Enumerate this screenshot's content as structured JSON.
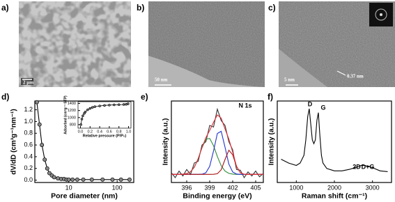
{
  "images": [
    {
      "label": "a)",
      "scale_bar": "2 μm"
    },
    {
      "label": "b)",
      "scale_bar": "50 nm"
    },
    {
      "label": "c)",
      "scale_bar": "5 nm",
      "annotation": "0.37 nm"
    }
  ],
  "chart_data": [
    {
      "type": "line",
      "label": "d)",
      "xlabel": "Pore diameter (nm)",
      "ylabel": "dV/dD (cm³g⁻¹nm⁻¹)",
      "xlog": true,
      "x": [
        2.2,
        2.5,
        2.8,
        3.2,
        3.6,
        4,
        4.5,
        5,
        6,
        7,
        8,
        9,
        10,
        12,
        15,
        20,
        30,
        50,
        80,
        120,
        180
      ],
      "series": [
        {
          "color": "#000000",
          "marker": true,
          "values": [
            1.33,
            0.95,
            0.6,
            0.35,
            0.2,
            0.12,
            0.08,
            0.05,
            0.03,
            0.02,
            0.02,
            0.01,
            0.01,
            0.01,
            0.01,
            0.01,
            0.01,
            0.01,
            0.01,
            0.01,
            0.01
          ]
        }
      ],
      "xlim": [
        2,
        220
      ],
      "ylim": [
        -0.04,
        1.35
      ],
      "xticks": [
        10,
        100
      ],
      "yticks": [
        {
          "value": 0,
          "label": "0.0"
        },
        0.2,
        0.4,
        0.6,
        0.8,
        {
          "value": 1,
          "label": "1.0"
        },
        1.2
      ]
    },
    {
      "type": "line",
      "inset": true,
      "xlabel": "Relative pressure (P/P₀)",
      "ylabel": "Adsorbed (cm³g⁻¹ STP)",
      "x": [
        0.01,
        0.03,
        0.05,
        0.08,
        0.1,
        0.15,
        0.2,
        0.25,
        0.3,
        0.4,
        0.5,
        0.6,
        0.7,
        0.8,
        0.9,
        0.95,
        0.99
      ],
      "series": [
        {
          "color": "#000000",
          "marker": true,
          "values": [
            800,
            960,
            1050,
            1120,
            1160,
            1220,
            1260,
            1290,
            1310,
            1330,
            1345,
            1355,
            1360,
            1365,
            1370,
            1375,
            1390
          ]
        }
      ],
      "xlim": [
        -0.05,
        1.05
      ],
      "ylim": [
        700,
        1450
      ],
      "xticks": [
        {
          "value": 0,
          "label": "0.0"
        },
        0.2,
        0.4,
        0.6,
        0.8,
        {
          "value": 1,
          "label": "1.0"
        }
      ],
      "yticks": [
        800,
        1000,
        1200,
        1400
      ]
    },
    {
      "type": "line",
      "label": "e)",
      "xlabel": "Binding energy (eV)",
      "ylabel": "Intensity (a.u.)",
      "annotations": [
        "N 1s"
      ],
      "x": [
        394,
        394.5,
        395,
        395.5,
        396,
        396.5,
        397,
        397.5,
        398,
        398.5,
        399,
        399.5,
        400,
        400.5,
        401,
        401.5,
        402,
        402.5,
        403,
        403.5,
        404,
        404.5,
        405,
        405.5,
        406
      ],
      "series": [
        {
          "color": "#333333",
          "values": [
            0.12,
            0.06,
            0.14,
            0.08,
            0.16,
            0.1,
            0.24,
            0.26,
            0.46,
            0.5,
            0.7,
            0.68,
            0.9,
            0.76,
            0.7,
            0.5,
            0.4,
            0.16,
            0.15,
            0.06,
            0.13,
            0.08,
            0.14,
            0.07,
            0.11
          ]
        },
        {
          "color": "#2e8b3a",
          "values": [
            0.1,
            0.1,
            0.1,
            0.102,
            0.109,
            0.132,
            0.189,
            0.293,
            0.427,
            0.53,
            0.541,
            0.452,
            0.319,
            0.206,
            0.14,
            0.112,
            0.103,
            0.1,
            0.1,
            0.1,
            0.1,
            0.1,
            0.1,
            0.1,
            0.1
          ]
        },
        {
          "color": "#2233cc",
          "values": [
            0.1,
            0.1,
            0.1,
            0.1,
            0.1,
            0.1,
            0.1,
            0.1,
            0.102,
            0.12,
            0.198,
            0.386,
            0.602,
            0.628,
            0.434,
            0.226,
            0.129,
            0.104,
            0.1,
            0.1,
            0.1,
            0.1,
            0.1,
            0.1,
            0.1
          ]
        },
        {
          "color": "#aa1111",
          "values": [
            0.1,
            0.1,
            0.1,
            0.1,
            0.1,
            0.1,
            0.1,
            0.1,
            0.1,
            0.1,
            0.1,
            0.101,
            0.108,
            0.156,
            0.282,
            0.396,
            0.34,
            0.197,
            0.12,
            0.102,
            0.1,
            0.1,
            0.1,
            0.1,
            0.1
          ]
        },
        {
          "color": "#e0303a",
          "values": [
            0.1,
            0.1,
            0.1,
            0.102,
            0.109,
            0.132,
            0.189,
            0.293,
            0.429,
            0.55,
            0.639,
            0.739,
            0.829,
            0.79,
            0.656,
            0.534,
            0.372,
            0.201,
            0.12,
            0.102,
            0.1,
            0.1,
            0.1,
            0.1,
            0.1
          ]
        }
      ],
      "xlim": [
        394,
        406
      ],
      "ylim": [
        0,
        1
      ],
      "xticks": [
        396,
        399,
        402,
        405
      ]
    },
    {
      "type": "line",
      "label": "f)",
      "xlabel": "Raman shift (cm⁻¹)",
      "ylabel": "Intensity (a.u.)",
      "annotations": [
        "D",
        "G",
        "2D",
        "D+G"
      ],
      "x": [
        600,
        800,
        1000,
        1100,
        1200,
        1250,
        1300,
        1340,
        1380,
        1420,
        1460,
        1500,
        1540,
        1580,
        1620,
        1660,
        1700,
        1800,
        2000,
        2200,
        2400,
        2600,
        2700,
        2800,
        2900,
        3000,
        3200,
        3400
      ],
      "series": [
        {
          "color": "#000000",
          "values": [
            0.3,
            0.25,
            0.22,
            0.25,
            0.35,
            0.55,
            0.85,
            0.95,
            0.75,
            0.55,
            0.5,
            0.55,
            0.8,
            0.9,
            0.6,
            0.35,
            0.25,
            0.18,
            0.15,
            0.15,
            0.17,
            0.2,
            0.22,
            0.22,
            0.21,
            0.19,
            0.15,
            0.14
          ]
        }
      ],
      "xlim": [
        500,
        3500
      ],
      "ylim": [
        0,
        1.05
      ],
      "xticks": [
        1000,
        2000,
        3000
      ]
    }
  ]
}
